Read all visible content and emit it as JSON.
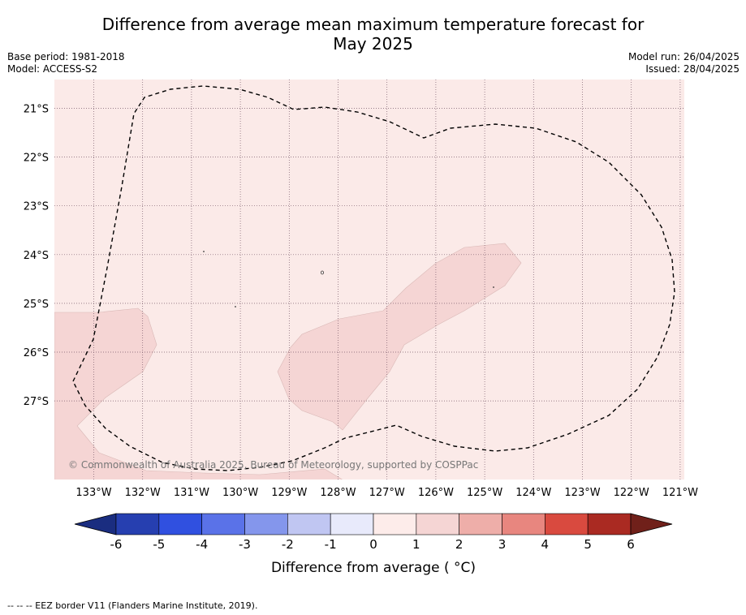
{
  "title": {
    "line1": "Difference from average mean maximum temperature forecast for",
    "line2": "May 2025"
  },
  "meta": {
    "base_period": "Base period: 1981-2018",
    "model": "Model: ACCESS-S2",
    "model_run": "Model run: 26/04/2025",
    "issued": "Issued: 28/04/2025"
  },
  "map": {
    "lon_labels": [
      "133°W",
      "132°W",
      "131°W",
      "130°W",
      "129°W",
      "128°W",
      "127°W",
      "126°W",
      "125°W",
      "124°W",
      "123°W",
      "122°W",
      "121°W"
    ],
    "lat_labels": [
      "21°S",
      "22°S",
      "23°S",
      "24°S",
      "25°S",
      "26°S",
      "27°S"
    ],
    "copyright": "© Commonwealth of Australia 2025, Bureau of Meteorology, supported by COSPPac",
    "background_class_color": "#fbeae8",
    "patch_class_color": "#f5d5d4",
    "background_class_range": "0 to 1",
    "patch_class_range": "1 to 2"
  },
  "colorbar": {
    "ticks": [
      "-6",
      "-5",
      "-4",
      "-3",
      "-2",
      "-1",
      "0",
      "1",
      "2",
      "3",
      "4",
      "5",
      "6"
    ],
    "colors": [
      "#263fb0",
      "#3050e0",
      "#5a72e8",
      "#8496ec",
      "#c0c6f2",
      "#e8eafb",
      "#fdecea",
      "#f5d5d4",
      "#eeaea9",
      "#e8867f",
      "#d94a3f",
      "#aa2a22"
    ],
    "under_color": "#1a2d80",
    "over_color": "#70201a",
    "label": "Difference from average ( °C)"
  },
  "footnote": "--  --  -- EEZ border V11 (Flanders Marine Institute, 2019)."
}
